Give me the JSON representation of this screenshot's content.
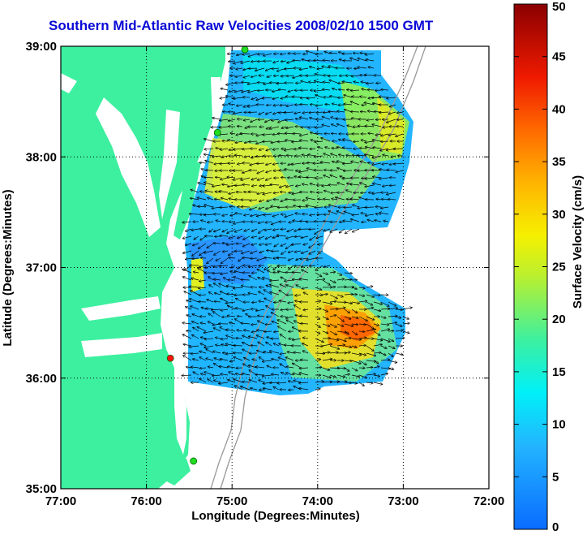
{
  "title": "Southern Mid-Atlantic Raw Velocities 2008/02/10 1500 GMT",
  "x_axis": {
    "label": "Longitude (Degrees:Minutes)",
    "ticks": [
      "77:00",
      "76:00",
      "75:00",
      "74:00",
      "73:00",
      "72:00"
    ]
  },
  "y_axis": {
    "label": "Latitude (Degrees:Minutes)",
    "ticks": [
      "39:00",
      "38:00",
      "37:00",
      "36:00",
      "35:00"
    ]
  },
  "colorbar": {
    "label": "Surface Velocity (cm/s)",
    "ticks": [
      "50",
      "45",
      "40",
      "35",
      "30",
      "25",
      "20",
      "15",
      "10",
      "5",
      "0"
    ],
    "range": [
      0,
      50
    ]
  },
  "colors": {
    "land": "#3cf0a0",
    "ocean": "#ffffff",
    "title": "#0a0ad6",
    "station_green": "#22dd22",
    "station_red": "#ff1010"
  },
  "map_extent": {
    "lon": [
      -77,
      -72
    ],
    "lat": [
      35,
      39
    ]
  },
  "stations": [
    {
      "lon": -74.85,
      "lat": 38.97,
      "color": "green"
    },
    {
      "lon": -75.17,
      "lat": 38.22,
      "color": "green"
    },
    {
      "lon": -75.72,
      "lat": 36.18,
      "color": "red"
    },
    {
      "lon": -75.45,
      "lat": 35.25,
      "color": "green"
    }
  ]
}
